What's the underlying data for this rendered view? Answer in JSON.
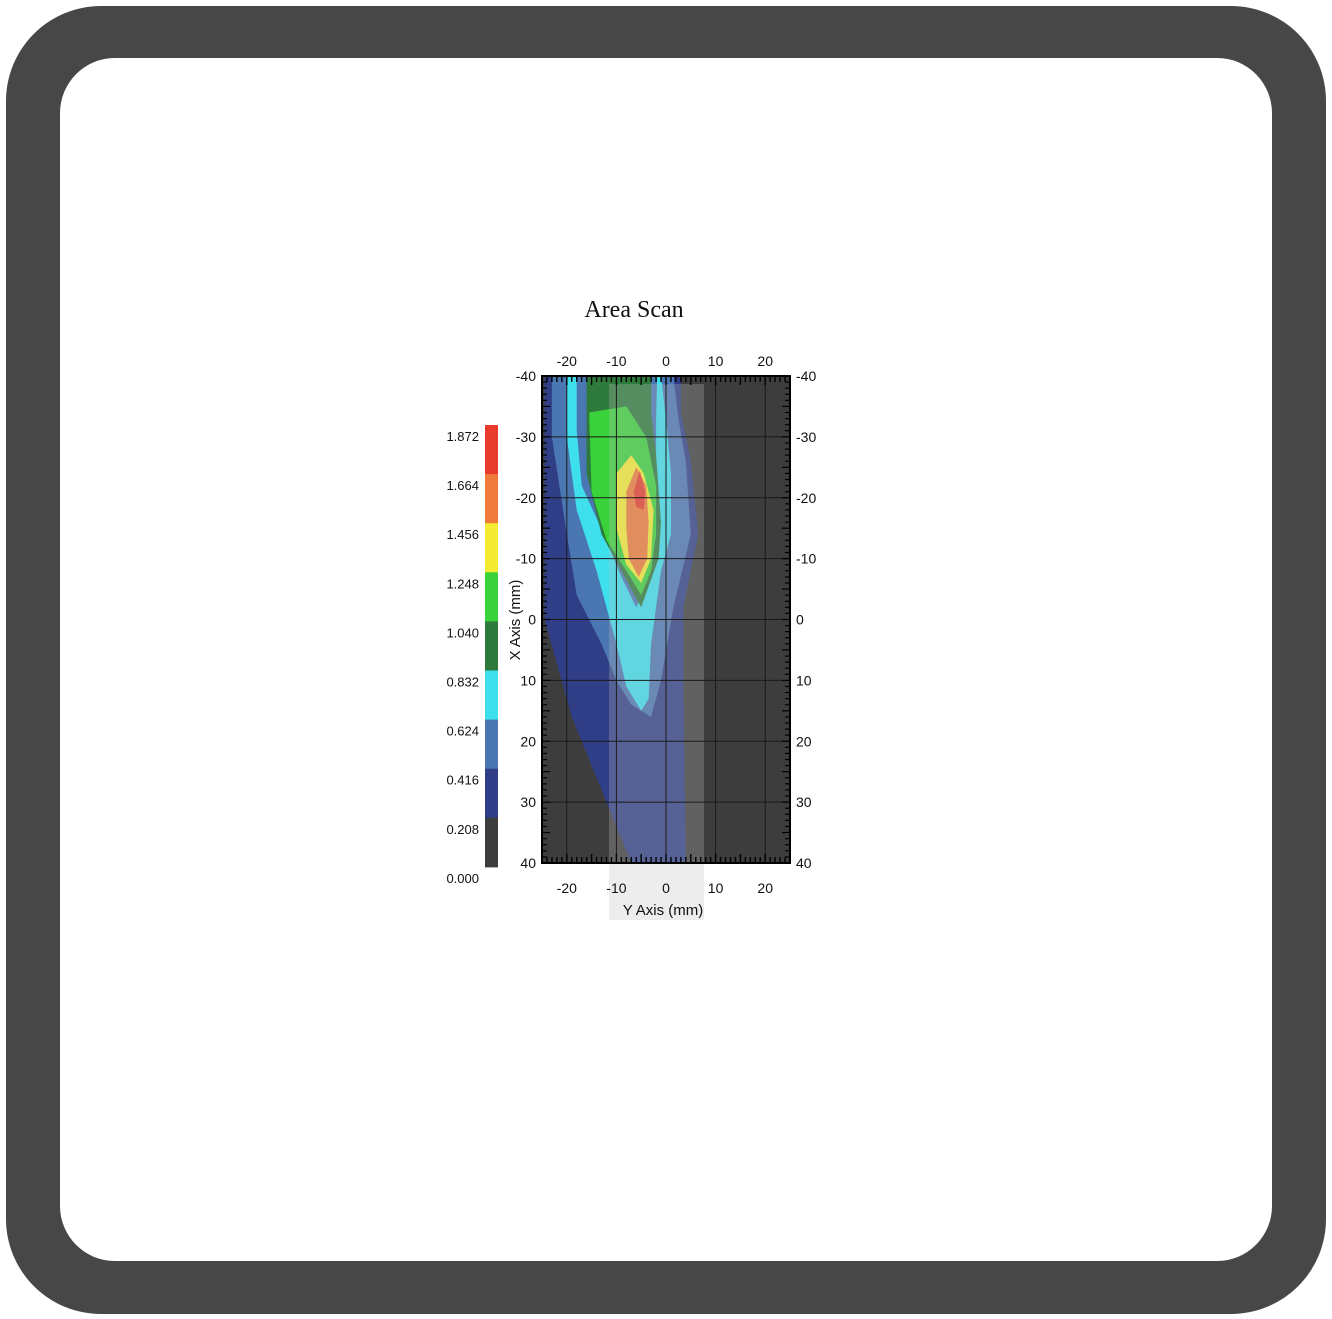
{
  "chart_data": {
    "type": "heatmap",
    "title": "Area Scan",
    "xlabel": "Y Axis (mm)",
    "ylabel": "X Axis (mm)",
    "x_range": [
      -25,
      25
    ],
    "y_range": [
      -40,
      40
    ],
    "y_inverted": true,
    "x_ticks": [
      "-20",
      "-10",
      "0",
      "10",
      "20"
    ],
    "y_ticks": [
      "-40",
      "-30",
      "-20",
      "-10",
      "0",
      "10",
      "20",
      "30",
      "40"
    ],
    "y_tick_values": [
      -40,
      -30,
      -20,
      -10,
      0,
      10,
      20,
      30,
      40
    ],
    "x_tick_values": [
      -20,
      -10,
      0,
      10,
      20
    ],
    "grid": true,
    "colorbar": {
      "labels": [
        "1.872",
        "1.664",
        "1.456",
        "1.248",
        "1.040",
        "0.832",
        "0.624",
        "0.416",
        "0.208",
        "0.000"
      ],
      "colors_top_to_bottom": [
        "#e83b2e",
        "#f07a3a",
        "#f4ec32",
        "#39d23a",
        "#2e7a3c",
        "#3fe0ee",
        "#4a77b2",
        "#2f3e86",
        "#3d3d3d"
      ]
    },
    "contours": [
      {
        "level": "0.208",
        "color": "#2f3e86",
        "points": [
          [
            -24.5,
            -40
          ],
          [
            3,
            -40
          ],
          [
            3,
            -34
          ],
          [
            5,
            -26
          ],
          [
            6.5,
            -14
          ],
          [
            3.5,
            -2
          ],
          [
            3.5,
            10
          ],
          [
            4,
            40
          ],
          [
            -7,
            40
          ],
          [
            -12,
            30
          ],
          [
            -19,
            16
          ],
          [
            -24.5,
            0
          ],
          [
            -24.5,
            -40
          ]
        ]
      },
      {
        "level": "0.416",
        "color": "#4a77b2",
        "points": [
          [
            -23,
            -40
          ],
          [
            1.5,
            -40
          ],
          [
            2.5,
            -33
          ],
          [
            4,
            -26
          ],
          [
            5,
            -14
          ],
          [
            1.5,
            -2
          ],
          [
            -1,
            10
          ],
          [
            -3,
            16
          ],
          [
            -7,
            14
          ],
          [
            -10,
            10
          ],
          [
            -13,
            4
          ],
          [
            -18,
            -4
          ],
          [
            -20,
            -14
          ],
          [
            -23,
            -30
          ],
          [
            -23,
            -40
          ]
        ]
      },
      {
        "level": "0.624",
        "color": "#3fe0ee",
        "points": [
          [
            -20,
            -40
          ],
          [
            -1,
            -40
          ],
          [
            0,
            -33
          ],
          [
            1,
            -24
          ],
          [
            1,
            -14
          ],
          [
            -1,
            -8
          ],
          [
            -3,
            4
          ],
          [
            -3.5,
            13
          ],
          [
            -5,
            15
          ],
          [
            -8,
            11
          ],
          [
            -10,
            4
          ],
          [
            -14,
            -8
          ],
          [
            -18,
            -18
          ],
          [
            -20,
            -30
          ],
          [
            -20,
            -40
          ]
        ]
      },
      {
        "level": "0.832",
        "color": "#4a77b2",
        "points": [
          [
            -18,
            -40
          ],
          [
            -1.8,
            -40
          ],
          [
            -2,
            -33
          ],
          [
            -2,
            -24
          ],
          [
            -1.5,
            -15
          ],
          [
            -3,
            -7
          ],
          [
            -6,
            -2
          ],
          [
            -9,
            -7
          ],
          [
            -12,
            -13
          ],
          [
            -17,
            -22
          ],
          [
            -18,
            -31
          ],
          [
            -18,
            -40
          ]
        ]
      },
      {
        "level": "1.040",
        "color": "#2e7a3c",
        "points": [
          [
            -16,
            -40
          ],
          [
            -3,
            -40
          ],
          [
            -3,
            -34
          ],
          [
            -2,
            -27
          ],
          [
            -1,
            -16
          ],
          [
            -1.5,
            -10
          ],
          [
            -5,
            -2
          ],
          [
            -9,
            -8
          ],
          [
            -13,
            -14
          ],
          [
            -16,
            -24
          ],
          [
            -16,
            -40
          ]
        ]
      },
      {
        "level": "1.248",
        "color": "#39d23a",
        "points": [
          [
            -15.5,
            -34
          ],
          [
            -8,
            -35
          ],
          [
            -4,
            -30
          ],
          [
            -2,
            -22
          ],
          [
            -2,
            -14
          ],
          [
            -3,
            -8
          ],
          [
            -5,
            -4
          ],
          [
            -8,
            -8
          ],
          [
            -12,
            -13
          ],
          [
            -15,
            -21
          ],
          [
            -15.5,
            -34
          ]
        ]
      },
      {
        "level": "1.456",
        "color": "#f4ec32",
        "points": [
          [
            -10,
            -24
          ],
          [
            -7,
            -27
          ],
          [
            -4.5,
            -24
          ],
          [
            -2.5,
            -18
          ],
          [
            -3,
            -10
          ],
          [
            -5,
            -6
          ],
          [
            -8,
            -9
          ],
          [
            -10,
            -15
          ],
          [
            -10,
            -24
          ]
        ]
      },
      {
        "level": "1.664",
        "color": "#f07a3a",
        "points": [
          [
            -8,
            -21
          ],
          [
            -6,
            -25
          ],
          [
            -4,
            -22
          ],
          [
            -3.5,
            -16
          ],
          [
            -3.8,
            -10
          ],
          [
            -5.5,
            -7
          ],
          [
            -7.5,
            -10
          ],
          [
            -8,
            -15
          ],
          [
            -8,
            -21
          ]
        ]
      },
      {
        "level": "1.872",
        "color": "#e83b2e",
        "points": [
          [
            -6.5,
            -21
          ],
          [
            -5.3,
            -24.5
          ],
          [
            -4.2,
            -21
          ],
          [
            -4.5,
            -18
          ],
          [
            -6,
            -18.5
          ],
          [
            -6.5,
            -21
          ]
        ]
      }
    ]
  }
}
